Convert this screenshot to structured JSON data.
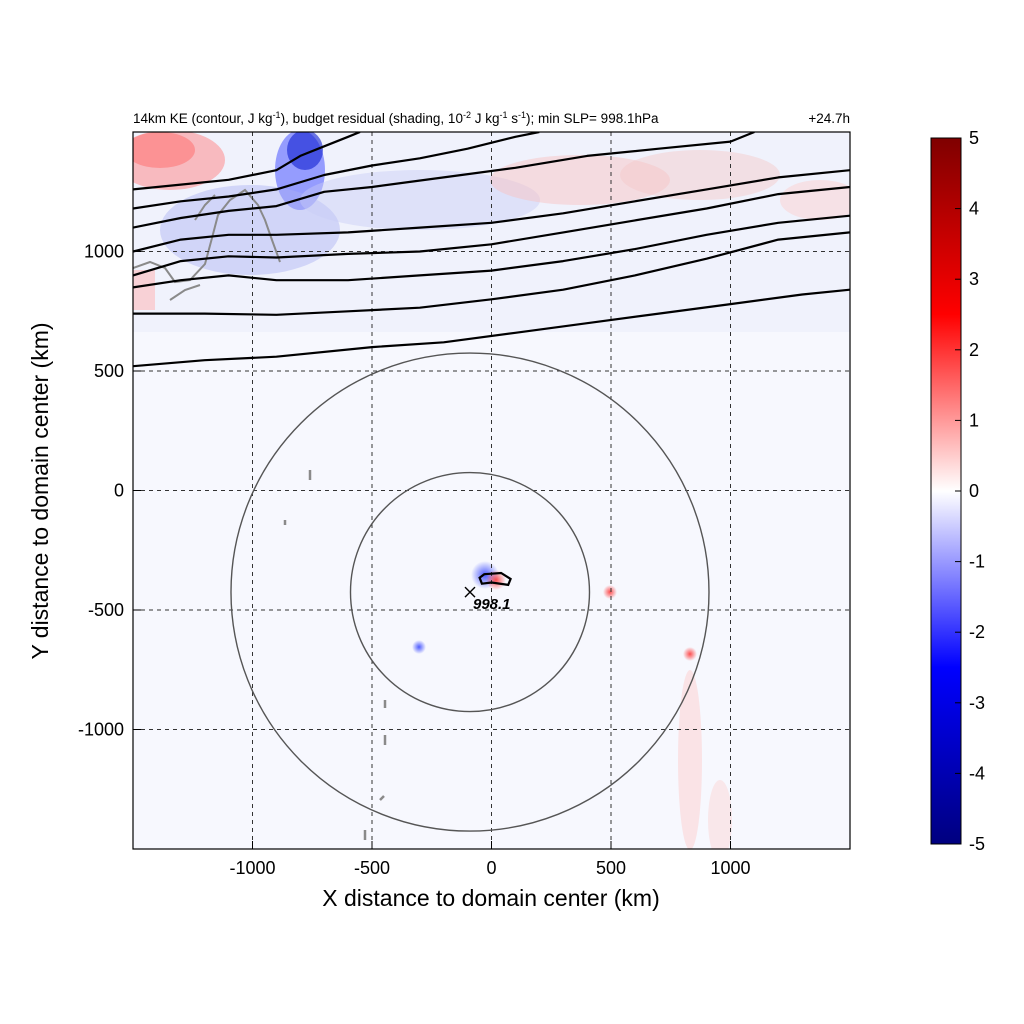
{
  "chart_data": {
    "type": "heatmap",
    "title": {
      "pre": "14km KE (contour, J kg",
      "sup1": "-1",
      "mid1": "), budget residual (shading, 10",
      "sup2": "-2",
      "mid2": " J kg",
      "sup3": "-1",
      "mid3": " s",
      "sup4": "-1",
      "post": "); min SLP= 998.1hPa"
    },
    "lead_time": "+24.7h",
    "xlabel": "X distance to domain center (km)",
    "ylabel": "Y distance to domain center (km)",
    "xlim": [
      -1500,
      1500
    ],
    "ylim": [
      -1500,
      1500
    ],
    "xticks": [
      -1000,
      -500,
      0,
      500,
      1000
    ],
    "yticks": [
      -1000,
      -500,
      0,
      500,
      1000
    ],
    "xtick_labels": [
      "-1000",
      "-500",
      "0",
      "500",
      "1000"
    ],
    "ytick_labels": [
      "-1000",
      "-500",
      "0",
      "500",
      "1000"
    ],
    "grid": true,
    "colorbar": {
      "min": -5,
      "max": 5,
      "ticks": [
        5,
        4,
        3,
        2,
        1,
        0,
        -1,
        -2,
        -3,
        -4,
        -5
      ],
      "tick_labels": [
        "5",
        "4",
        "3",
        "2",
        "1",
        "0",
        "-1",
        "-2",
        "-3",
        "-4",
        "-5"
      ],
      "colormap": [
        "#00007f",
        "#0000ff",
        "#ffffff",
        "#ff0000",
        "#7f0000"
      ]
    },
    "storm_center": {
      "x": -90,
      "y": -425,
      "label": "998.1"
    },
    "range_rings_km": [
      500,
      1000
    ],
    "ke_contours": [
      [
        [
          -1500,
          520
        ],
        [
          -1200,
          545
        ],
        [
          -900,
          560
        ],
        [
          -500,
          600
        ],
        [
          -200,
          620
        ],
        [
          100,
          660
        ],
        [
          400,
          700
        ],
        [
          700,
          740
        ],
        [
          1000,
          780
        ],
        [
          1300,
          820
        ],
        [
          1500,
          840
        ]
      ],
      [
        [
          -1500,
          740
        ],
        [
          -1200,
          740
        ],
        [
          -900,
          735
        ],
        [
          -600,
          750
        ],
        [
          -300,
          765
        ],
        [
          0,
          800
        ],
        [
          300,
          840
        ],
        [
          600,
          900
        ],
        [
          900,
          970
        ],
        [
          1200,
          1050
        ],
        [
          1500,
          1080
        ]
      ],
      [
        [
          -1500,
          850
        ],
        [
          -1300,
          880
        ],
        [
          -1100,
          900
        ],
        [
          -900,
          880
        ],
        [
          -600,
          880
        ],
        [
          -300,
          900
        ],
        [
          0,
          920
        ],
        [
          300,
          960
        ],
        [
          600,
          1010
        ],
        [
          900,
          1070
        ],
        [
          1200,
          1120
        ],
        [
          1500,
          1150
        ]
      ],
      [
        [
          -1500,
          900
        ],
        [
          -1300,
          960
        ],
        [
          -1100,
          980
        ],
        [
          -900,
          975
        ],
        [
          -600,
          990
        ],
        [
          -300,
          1000
        ],
        [
          0,
          1030
        ],
        [
          300,
          1080
        ],
        [
          600,
          1130
        ],
        [
          900,
          1180
        ],
        [
          1200,
          1240
        ],
        [
          1500,
          1270
        ]
      ],
      [
        [
          -1500,
          1000
        ],
        [
          -1300,
          1050
        ],
        [
          -1100,
          1070
        ],
        [
          -900,
          1070
        ],
        [
          -600,
          1080
        ],
        [
          -300,
          1100
        ],
        [
          0,
          1120
        ],
        [
          300,
          1160
        ],
        [
          600,
          1210
        ],
        [
          900,
          1260
        ],
        [
          1200,
          1310
        ],
        [
          1500,
          1340
        ]
      ],
      [
        [
          -1500,
          1100
        ],
        [
          -1300,
          1140
        ],
        [
          -1100,
          1170
        ],
        [
          -900,
          1190
        ],
        [
          -700,
          1250
        ],
        [
          -500,
          1270
        ],
        [
          -200,
          1310
        ],
        [
          100,
          1350
        ],
        [
          400,
          1400
        ],
        [
          700,
          1430
        ],
        [
          1000,
          1460
        ],
        [
          1100,
          1500
        ]
      ],
      [
        [
          -1500,
          1180
        ],
        [
          -1300,
          1210
        ],
        [
          -1100,
          1230
        ],
        [
          -900,
          1260
        ],
        [
          -700,
          1320
        ],
        [
          -500,
          1360
        ],
        [
          -300,
          1390
        ],
        [
          -100,
          1430
        ],
        [
          100,
          1480
        ],
        [
          200,
          1500
        ]
      ],
      [
        [
          -1500,
          1260
        ],
        [
          -1300,
          1280
        ],
        [
          -1100,
          1300
        ],
        [
          -900,
          1340
        ],
        [
          -800,
          1400
        ],
        [
          -700,
          1440
        ],
        [
          -600,
          1480
        ],
        [
          -550,
          1500
        ]
      ]
    ],
    "ke_inner_contour": [
      [
        -30,
        -350
      ],
      [
        40,
        -345
      ],
      [
        80,
        -370
      ],
      [
        70,
        -395
      ],
      [
        0,
        -385
      ],
      [
        -40,
        -390
      ],
      [
        -50,
        -365
      ],
      [
        -30,
        -350
      ]
    ]
  }
}
